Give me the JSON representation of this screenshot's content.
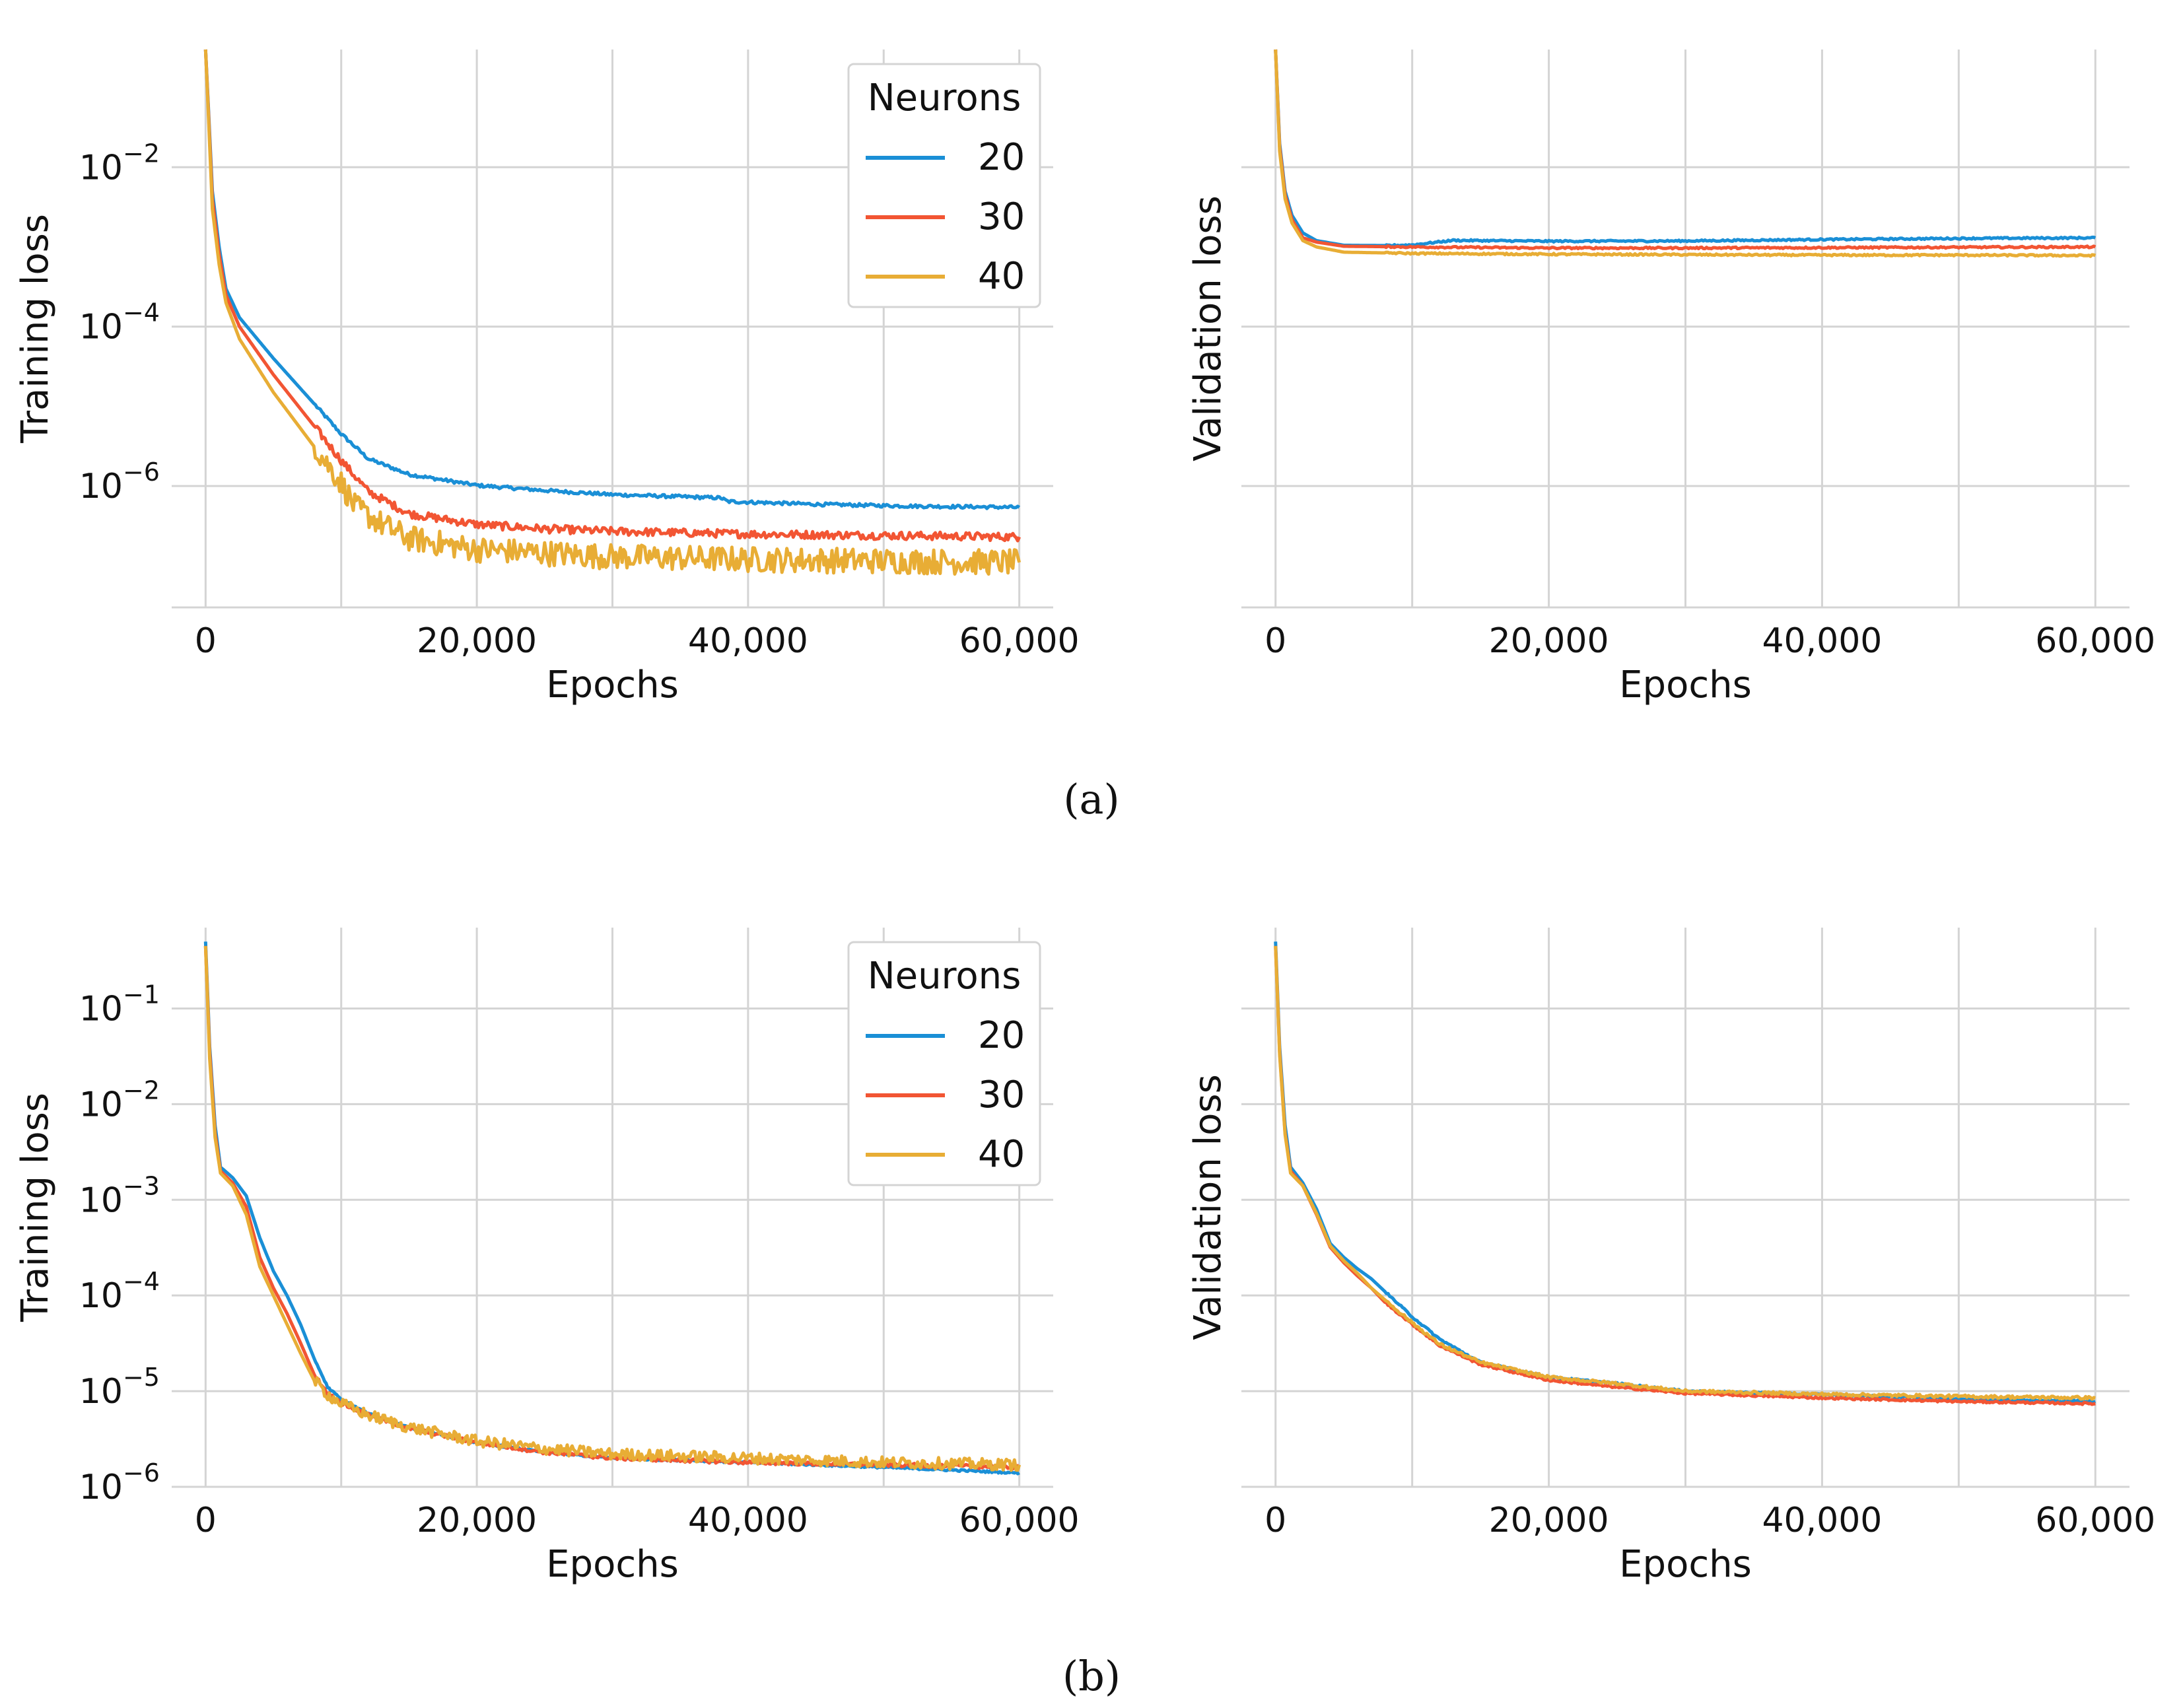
{
  "colors": {
    "n20": "#1a8fd6",
    "n30": "#f25533",
    "n40": "#e8ad35"
  },
  "panel_labels": {
    "a": "(a)",
    "b": "(b)"
  },
  "chart_data": [
    {
      "id": "a-train",
      "type": "line",
      "xlabel": "Epochs",
      "ylabel": "Training loss",
      "yscale": "log",
      "xlim": [
        -2500,
        62500
      ],
      "ylim": [
        3e-08,
        0.3
      ],
      "xticks": [
        0,
        20000,
        40000,
        60000
      ],
      "xtick_labels": [
        "0",
        "20,000",
        "40,000",
        "60,000"
      ],
      "yticks": [
        0.01,
        0.0001,
        1e-06
      ],
      "ytick_labels": [
        [
          "10",
          "−2"
        ],
        [
          "10",
          "−4"
        ],
        [
          "10",
          "−6"
        ]
      ],
      "legend": {
        "title": "Neurons",
        "placement": "top-right"
      },
      "series": [
        {
          "name": "20",
          "color_key": "n20",
          "noise": 0.02,
          "points": [
            [
              0,
              0.3
            ],
            [
              500,
              0.005
            ],
            [
              1000,
              0.001
            ],
            [
              1500,
              0.0003
            ],
            [
              2500,
              0.00013
            ],
            [
              5000,
              4e-05
            ],
            [
              10000,
              4.5e-06
            ],
            [
              12000,
              2.2e-06
            ],
            [
              15000,
              1.4e-06
            ],
            [
              20000,
              1.02e-06
            ],
            [
              25000,
              8.8e-07
            ],
            [
              30000,
              7.8e-07
            ],
            [
              38000,
              7.1e-07
            ],
            [
              38500,
              6.4e-07
            ],
            [
              45000,
              5.9e-07
            ],
            [
              52000,
              5.6e-07
            ],
            [
              60000,
              5.4e-07
            ]
          ]
        },
        {
          "name": "30",
          "color_key": "n30",
          "noise": 0.05,
          "points": [
            [
              0,
              0.3
            ],
            [
              500,
              0.004
            ],
            [
              1000,
              0.0008
            ],
            [
              1500,
              0.00025
            ],
            [
              2500,
              0.0001
            ],
            [
              5000,
              2.5e-05
            ],
            [
              10000,
              2.1e-06
            ],
            [
              12000,
              8.5e-07
            ],
            [
              15000,
              4.5e-07
            ],
            [
              20000,
              3.3e-07
            ],
            [
              25000,
              2.9e-07
            ],
            [
              30000,
              2.7e-07
            ],
            [
              40000,
              2.5e-07
            ],
            [
              50000,
              2.4e-07
            ],
            [
              60000,
              2.3e-07
            ]
          ]
        },
        {
          "name": "40",
          "color_key": "n40",
          "noise": 0.16,
          "points": [
            [
              0,
              0.3
            ],
            [
              500,
              0.003
            ],
            [
              1000,
              0.0006
            ],
            [
              1500,
              0.0002
            ],
            [
              2500,
              7e-05
            ],
            [
              5000,
              1.5e-05
            ],
            [
              10000,
              1.1e-06
            ],
            [
              11000,
              5.5e-07
            ],
            [
              13000,
              3.3e-07
            ],
            [
              15000,
              2.2e-07
            ],
            [
              20000,
              1.6e-07
            ],
            [
              30000,
              1.3e-07
            ],
            [
              40000,
              1.2e-07
            ],
            [
              50000,
              1.15e-07
            ],
            [
              60000,
              1.1e-07
            ]
          ]
        }
      ]
    },
    {
      "id": "a-val",
      "type": "line",
      "xlabel": "Epochs",
      "ylabel": "Validation loss",
      "yscale": "log",
      "xlim": [
        -2500,
        62500
      ],
      "ylim": [
        3e-08,
        0.3
      ],
      "xticks": [
        0,
        20000,
        40000,
        60000
      ],
      "xtick_labels": [
        "0",
        "20,000",
        "40,000",
        "60,000"
      ],
      "yticks": [
        0.01,
        0.0001,
        1e-06
      ],
      "ytick_labels": [],
      "series": [
        {
          "name": "20",
          "color_key": "n20",
          "noise": 0.01,
          "points": [
            [
              0,
              0.3
            ],
            [
              300,
              0.02
            ],
            [
              700,
              0.005
            ],
            [
              1200,
              0.0025
            ],
            [
              2000,
              0.0015
            ],
            [
              3000,
              0.0012
            ],
            [
              5000,
              0.00105
            ],
            [
              8000,
              0.00104
            ],
            [
              10000,
              0.00106
            ],
            [
              13000,
              0.00121
            ],
            [
              20000,
              0.00118
            ],
            [
              30000,
              0.00119
            ],
            [
              40000,
              0.00124
            ],
            [
              50000,
              0.00128
            ],
            [
              60000,
              0.0013
            ]
          ]
        },
        {
          "name": "30",
          "color_key": "n30",
          "noise": 0.01,
          "points": [
            [
              0,
              0.3
            ],
            [
              300,
              0.018
            ],
            [
              700,
              0.0045
            ],
            [
              1200,
              0.0022
            ],
            [
              2000,
              0.0013
            ],
            [
              3000,
              0.00115
            ],
            [
              5000,
              0.00102
            ],
            [
              10000,
              0.001
            ],
            [
              20000,
              0.00097
            ],
            [
              30000,
              0.00097
            ],
            [
              40000,
              0.00098
            ],
            [
              50000,
              0.00099
            ],
            [
              60000,
              0.001
            ]
          ]
        },
        {
          "name": "40",
          "color_key": "n40",
          "noise": 0.01,
          "points": [
            [
              0,
              0.3
            ],
            [
              300,
              0.016
            ],
            [
              700,
              0.004
            ],
            [
              1200,
              0.002
            ],
            [
              2000,
              0.0012
            ],
            [
              3000,
              0.001
            ],
            [
              5000,
              0.00086
            ],
            [
              10000,
              0.00083
            ],
            [
              20000,
              0.00081
            ],
            [
              30000,
              0.0008
            ],
            [
              40000,
              0.00079
            ],
            [
              50000,
              0.00079
            ],
            [
              60000,
              0.00078
            ]
          ]
        }
      ]
    },
    {
      "id": "b-train",
      "type": "line",
      "xlabel": "Epochs",
      "ylabel": "Training loss",
      "yscale": "log",
      "xlim": [
        -2500,
        62500
      ],
      "ylim": [
        1e-06,
        0.7
      ],
      "xticks": [
        0,
        20000,
        40000,
        60000
      ],
      "xtick_labels": [
        "0",
        "20,000",
        "40,000",
        "60,000"
      ],
      "yticks": [
        0.1,
        0.01,
        0.001,
        0.0001,
        1e-05,
        1e-06
      ],
      "ytick_labels": [
        [
          "10",
          "−1"
        ],
        [
          "10",
          "−2"
        ],
        [
          "10",
          "−3"
        ],
        [
          "10",
          "−4"
        ],
        [
          "10",
          "−5"
        ],
        [
          "10",
          "−6"
        ]
      ],
      "legend": {
        "title": "Neurons",
        "placement": "top-right"
      },
      "series": [
        {
          "name": "20",
          "color_key": "n20",
          "noise": 0.01,
          "points": [
            [
              0,
              0.5
            ],
            [
              300,
              0.04
            ],
            [
              700,
              0.006
            ],
            [
              1100,
              0.0022
            ],
            [
              2000,
              0.0017
            ],
            [
              3000,
              0.0011
            ],
            [
              4000,
              0.0004
            ],
            [
              5000,
              0.00018
            ],
            [
              6000,
              0.0001
            ],
            [
              7000,
              5e-05
            ],
            [
              8000,
              2.2e-05
            ],
            [
              9000,
              1.1e-05
            ],
            [
              10000,
              8.2e-06
            ],
            [
              12000,
              5.8e-06
            ],
            [
              15000,
              4.2e-06
            ],
            [
              20000,
              2.9e-06
            ],
            [
              25000,
              2.3e-06
            ],
            [
              30000,
              2e-06
            ],
            [
              40000,
              1.8e-06
            ],
            [
              50000,
              1.6e-06
            ],
            [
              60000,
              1.4e-06
            ]
          ]
        },
        {
          "name": "30",
          "color_key": "n30",
          "noise": 0.02,
          "points": [
            [
              0,
              0.45
            ],
            [
              300,
              0.035
            ],
            [
              700,
              0.005
            ],
            [
              1100,
              0.002
            ],
            [
              2000,
              0.0015
            ],
            [
              3000,
              0.00085
            ],
            [
              4000,
              0.00025
            ],
            [
              5000,
              0.00012
            ],
            [
              6000,
              6.5e-05
            ],
            [
              7000,
              3.2e-05
            ],
            [
              8000,
              1.5e-05
            ],
            [
              9000,
              9.5e-06
            ],
            [
              10000,
              7.5e-06
            ],
            [
              12000,
              5.6e-06
            ],
            [
              15000,
              4.1e-06
            ],
            [
              20000,
              2.9e-06
            ],
            [
              25000,
              2.3e-06
            ],
            [
              30000,
              2e-06
            ],
            [
              40000,
              1.8e-06
            ],
            [
              50000,
              1.7e-06
            ],
            [
              60000,
              1.6e-06
            ]
          ]
        },
        {
          "name": "40",
          "color_key": "n40",
          "noise": 0.06,
          "points": [
            [
              0,
              0.45
            ],
            [
              300,
              0.03
            ],
            [
              700,
              0.0045
            ],
            [
              1100,
              0.0019
            ],
            [
              2000,
              0.0014
            ],
            [
              3000,
              0.0007
            ],
            [
              4000,
              0.0002
            ],
            [
              5000,
              0.0001
            ],
            [
              6000,
              5e-05
            ],
            [
              7000,
              2.5e-05
            ],
            [
              8000,
              1.3e-05
            ],
            [
              9000,
              9.2e-06
            ],
            [
              10000,
              7.4e-06
            ],
            [
              12000,
              5.6e-06
            ],
            [
              15000,
              4.2e-06
            ],
            [
              20000,
              3e-06
            ],
            [
              25000,
              2.5e-06
            ],
            [
              30000,
              2.2e-06
            ],
            [
              40000,
              2e-06
            ],
            [
              50000,
              1.8e-06
            ],
            [
              60000,
              1.7e-06
            ]
          ]
        }
      ]
    },
    {
      "id": "b-val",
      "type": "line",
      "xlabel": "Epochs",
      "ylabel": "Validation loss",
      "yscale": "log",
      "xlim": [
        -2500,
        62500
      ],
      "ylim": [
        1e-06,
        0.7
      ],
      "xticks": [
        0,
        20000,
        40000,
        60000
      ],
      "xtick_labels": [
        "0",
        "20,000",
        "40,000",
        "60,000"
      ],
      "yticks": [
        0.1,
        0.01,
        0.001,
        0.0001,
        1e-05,
        1e-06
      ],
      "ytick_labels": [],
      "series": [
        {
          "name": "20",
          "color_key": "n20",
          "noise": 0.01,
          "points": [
            [
              0,
              0.5
            ],
            [
              300,
              0.04
            ],
            [
              700,
              0.006
            ],
            [
              1100,
              0.0022
            ],
            [
              2000,
              0.0015
            ],
            [
              3000,
              0.0008
            ],
            [
              4000,
              0.00035
            ],
            [
              5000,
              0.00025
            ],
            [
              6000,
              0.00019
            ],
            [
              7000,
              0.00015
            ],
            [
              8000,
              0.00011
            ],
            [
              10000,
              6e-05
            ],
            [
              12000,
              3.5e-05
            ],
            [
              15000,
              2e-05
            ],
            [
              20000,
              1.4e-05
            ],
            [
              25000,
              1.2e-05
            ],
            [
              30000,
              1e-05
            ],
            [
              40000,
              9.2e-06
            ],
            [
              50000,
              8.3e-06
            ],
            [
              60000,
              7.8e-06
            ]
          ]
        },
        {
          "name": "30",
          "color_key": "n30",
          "noise": 0.01,
          "points": [
            [
              0,
              0.45
            ],
            [
              300,
              0.035
            ],
            [
              700,
              0.005
            ],
            [
              1100,
              0.002
            ],
            [
              2000,
              0.0014
            ],
            [
              3000,
              0.0007
            ],
            [
              4000,
              0.00032
            ],
            [
              5000,
              0.00022
            ],
            [
              6000,
              0.00016
            ],
            [
              7000,
              0.00012
            ],
            [
              8000,
              8.5e-05
            ],
            [
              10000,
              5e-05
            ],
            [
              12000,
              3e-05
            ],
            [
              15000,
              1.9e-05
            ],
            [
              20000,
              1.3e-05
            ],
            [
              25000,
              1.1e-05
            ],
            [
              30000,
              9.5e-06
            ],
            [
              40000,
              8.5e-06
            ],
            [
              50000,
              7.8e-06
            ],
            [
              60000,
              7.4e-06
            ]
          ]
        },
        {
          "name": "40",
          "color_key": "n40",
          "noise": 0.015,
          "points": [
            [
              0,
              0.45
            ],
            [
              300,
              0.033
            ],
            [
              700,
              0.0048
            ],
            [
              1100,
              0.0019
            ],
            [
              2000,
              0.0014
            ],
            [
              3000,
              0.00072
            ],
            [
              4000,
              0.00033
            ],
            [
              5000,
              0.00023
            ],
            [
              6000,
              0.00017
            ],
            [
              7000,
              0.00012
            ],
            [
              8000,
              9e-05
            ],
            [
              10000,
              5.2e-05
            ],
            [
              12000,
              3.1e-05
            ],
            [
              15000,
              2e-05
            ],
            [
              20000,
              1.4e-05
            ],
            [
              25000,
              1.2e-05
            ],
            [
              30000,
              1e-05
            ],
            [
              40000,
              9.3e-06
            ],
            [
              50000,
              8.8e-06
            ],
            [
              60000,
              8.5e-06
            ]
          ]
        }
      ]
    }
  ]
}
